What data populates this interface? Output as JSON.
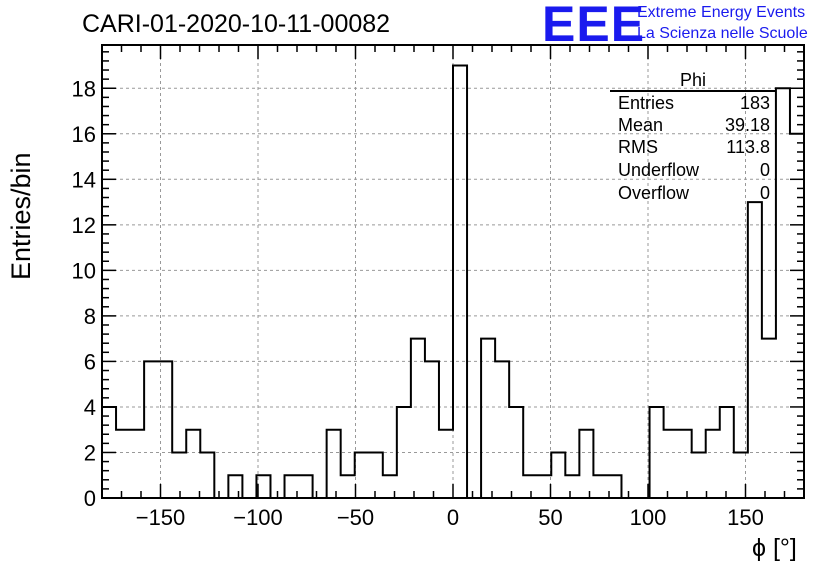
{
  "title": "CARI-01-2020-10-11-00082",
  "logo": {
    "text": "EEE",
    "line1": "Extreme Energy Events",
    "line2": "La Scienza nelle Scuole",
    "color": "#1a1aee"
  },
  "stats_box": {
    "title": "Phi",
    "rows": [
      {
        "label": "Entries",
        "value": "183"
      },
      {
        "label": "Mean",
        "value": "39.18"
      },
      {
        "label": "RMS",
        "value": "113.8"
      },
      {
        "label": "Underflow",
        "value": "0"
      },
      {
        "label": "Overflow",
        "value": "0"
      }
    ]
  },
  "chart_data": {
    "type": "bar",
    "style": "step-histogram",
    "title": "CARI-01-2020-10-11-00082",
    "xlabel": "ϕ [°]",
    "ylabel": "Entries/bin",
    "xlim": [
      -180,
      180
    ],
    "ylim": [
      0,
      19.9
    ],
    "bin_width": 7.2,
    "xticks": [
      -150,
      -100,
      -50,
      0,
      50,
      100,
      150
    ],
    "yticks": [
      0,
      2,
      4,
      6,
      8,
      10,
      12,
      14,
      16,
      18
    ],
    "grid": true,
    "bin_low_edges": [
      -180,
      -172.8,
      -165.6,
      -158.4,
      -151.2,
      -144,
      -136.8,
      -129.6,
      -122.4,
      -115.2,
      -108,
      -100.8,
      -93.6,
      -86.4,
      -79.2,
      -72,
      -64.8,
      -57.6,
      -50.4,
      -43.2,
      -36,
      -28.8,
      -21.6,
      -14.4,
      -7.2,
      0,
      7.2,
      14.4,
      21.6,
      28.8,
      36,
      43.2,
      50.4,
      57.6,
      64.8,
      72,
      79.2,
      86.4,
      93.6,
      100.8,
      108,
      115.2,
      122.4,
      129.6,
      136.8,
      144,
      151.2,
      158.4,
      165.6,
      172.8
    ],
    "values": [
      4,
      3,
      3,
      6,
      6,
      2,
      3,
      2,
      0,
      1,
      0,
      1,
      0,
      1,
      1,
      0,
      3,
      1,
      2,
      2,
      1,
      4,
      7,
      6,
      3,
      19,
      0,
      7,
      6,
      4,
      1,
      1,
      2,
      1,
      3,
      1,
      1,
      0,
      0,
      4,
      3,
      3,
      2,
      3,
      4,
      2,
      13,
      7,
      18,
      16
    ]
  }
}
